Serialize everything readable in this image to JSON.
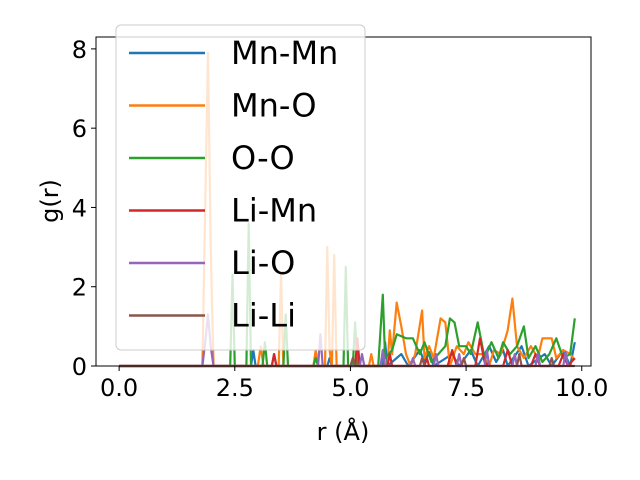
{
  "chart_data": {
    "type": "line",
    "xlabel": "r (Å)",
    "ylabel": "g(r)",
    "xlim": [
      -0.5,
      10.2
    ],
    "ylim": [
      0,
      8.3
    ],
    "xticks": [
      0.0,
      2.5,
      5.0,
      7.5,
      10.0
    ],
    "xtick_labels": [
      "0.0",
      "2.5",
      "5.0",
      "7.5",
      "10.0"
    ],
    "yticks": [
      0,
      2,
      4,
      6,
      8
    ],
    "ytick_labels": [
      "0",
      "2",
      "4",
      "6",
      "8"
    ],
    "legend_position": "upper-left",
    "grid": false,
    "series": [
      {
        "name": "Mn-Mn",
        "color": "#1f77b4",
        "points": [
          [
            0,
            0
          ],
          [
            1.8,
            0
          ],
          [
            2.85,
            0
          ],
          [
            2.9,
            0.4
          ],
          [
            2.95,
            0
          ],
          [
            3.3,
            0
          ],
          [
            3.35,
            0.3
          ],
          [
            3.4,
            0
          ],
          [
            4.5,
            0
          ],
          [
            4.55,
            0.2
          ],
          [
            4.6,
            0
          ],
          [
            5.1,
            0
          ],
          [
            5.15,
            0.3
          ],
          [
            5.2,
            0
          ],
          [
            5.7,
            0
          ],
          [
            5.75,
            0.6
          ],
          [
            5.8,
            0
          ],
          [
            6.1,
            0.3
          ],
          [
            6.25,
            0
          ],
          [
            6.5,
            0.4
          ],
          [
            6.6,
            0.1
          ],
          [
            6.7,
            0.35
          ],
          [
            6.8,
            0
          ],
          [
            7.2,
            0.3
          ],
          [
            7.35,
            0
          ],
          [
            7.6,
            0.4
          ],
          [
            7.75,
            0
          ],
          [
            8.0,
            0.5
          ],
          [
            8.15,
            0.1
          ],
          [
            8.3,
            0.4
          ],
          [
            8.4,
            0
          ],
          [
            8.7,
            0.5
          ],
          [
            8.85,
            0
          ],
          [
            9.2,
            0.3
          ],
          [
            9.35,
            0
          ],
          [
            9.6,
            0.4
          ],
          [
            9.75,
            0
          ],
          [
            9.85,
            0.6
          ]
        ]
      },
      {
        "name": "Mn-O",
        "color": "#ff7f0e",
        "points": [
          [
            0,
            0
          ],
          [
            1.8,
            0
          ],
          [
            1.86,
            4.0
          ],
          [
            1.92,
            7.9
          ],
          [
            1.98,
            3.0
          ],
          [
            2.04,
            0
          ],
          [
            3.0,
            0
          ],
          [
            3.06,
            0.5
          ],
          [
            3.12,
            0
          ],
          [
            3.45,
            0
          ],
          [
            3.5,
            2.3
          ],
          [
            3.55,
            0
          ],
          [
            4.2,
            0
          ],
          [
            4.25,
            0.4
          ],
          [
            4.3,
            0
          ],
          [
            4.45,
            0
          ],
          [
            4.5,
            3.0
          ],
          [
            4.55,
            0.4
          ],
          [
            4.6,
            0
          ],
          [
            4.65,
            2.8
          ],
          [
            4.7,
            0
          ],
          [
            5.4,
            0
          ],
          [
            5.45,
            0.3
          ],
          [
            5.5,
            0
          ],
          [
            5.8,
            0
          ],
          [
            5.85,
            0.9
          ],
          [
            5.9,
            0.3
          ],
          [
            6.0,
            1.6
          ],
          [
            6.1,
            1.0
          ],
          [
            6.2,
            0.3
          ],
          [
            6.3,
            0
          ],
          [
            6.4,
            0.3
          ],
          [
            6.55,
            1.4
          ],
          [
            6.6,
            0.2
          ],
          [
            6.7,
            0.5
          ],
          [
            6.8,
            0.2
          ],
          [
            6.95,
            1.2
          ],
          [
            7.05,
            1.1
          ],
          [
            7.15,
            0
          ],
          [
            7.3,
            0.5
          ],
          [
            7.45,
            0.3
          ],
          [
            7.55,
            0.6
          ],
          [
            7.7,
            0.3
          ],
          [
            7.85,
            0.3
          ],
          [
            8.0,
            0
          ],
          [
            8.1,
            0.4
          ],
          [
            8.25,
            0.3
          ],
          [
            8.4,
            0.9
          ],
          [
            8.5,
            1.7
          ],
          [
            8.6,
            0.5
          ],
          [
            8.75,
            0.2
          ],
          [
            8.9,
            0.5
          ],
          [
            9.05,
            0.2
          ],
          [
            9.15,
            0.7
          ],
          [
            9.35,
            0.7
          ],
          [
            9.45,
            0.2
          ],
          [
            9.6,
            0.4
          ],
          [
            9.75,
            0.3
          ],
          [
            9.85,
            0.15
          ]
        ]
      },
      {
        "name": "O-O",
        "color": "#2ca02c",
        "points": [
          [
            0,
            0
          ],
          [
            2.4,
            0
          ],
          [
            2.45,
            2.3
          ],
          [
            2.5,
            0
          ],
          [
            2.75,
            0
          ],
          [
            2.8,
            3.6
          ],
          [
            2.85,
            0
          ],
          [
            3.1,
            0
          ],
          [
            3.15,
            0.6
          ],
          [
            3.2,
            0
          ],
          [
            3.55,
            0
          ],
          [
            3.6,
            1.3
          ],
          [
            3.65,
            0
          ],
          [
            4.2,
            0
          ],
          [
            4.25,
            0.2
          ],
          [
            4.3,
            0
          ],
          [
            4.85,
            0
          ],
          [
            4.9,
            2.5
          ],
          [
            4.95,
            0
          ],
          [
            5.05,
            0
          ],
          [
            5.1,
            1.1
          ],
          [
            5.15,
            0
          ],
          [
            5.6,
            0
          ],
          [
            5.65,
            0.9
          ],
          [
            5.7,
            1.8
          ],
          [
            5.75,
            0.2
          ],
          [
            5.9,
            0.4
          ],
          [
            6.0,
            0.8
          ],
          [
            6.2,
            0.7
          ],
          [
            6.35,
            0.7
          ],
          [
            6.5,
            0.3
          ],
          [
            6.6,
            0.6
          ],
          [
            6.75,
            0.1
          ],
          [
            6.9,
            0.3
          ],
          [
            7.05,
            0.5
          ],
          [
            7.15,
            1.2
          ],
          [
            7.25,
            1.1
          ],
          [
            7.35,
            0.5
          ],
          [
            7.5,
            0.5
          ],
          [
            7.6,
            0.3
          ],
          [
            7.75,
            1.1
          ],
          [
            7.9,
            0.2
          ],
          [
            8.05,
            0.6
          ],
          [
            8.2,
            0.2
          ],
          [
            8.3,
            0.6
          ],
          [
            8.45,
            0.3
          ],
          [
            8.6,
            0.5
          ],
          [
            8.75,
            1.0
          ],
          [
            8.85,
            0.2
          ],
          [
            9.0,
            0.5
          ],
          [
            9.15,
            0.1
          ],
          [
            9.3,
            0.3
          ],
          [
            9.45,
            0.7
          ],
          [
            9.6,
            0.2
          ],
          [
            9.75,
            0.3
          ],
          [
            9.85,
            1.2
          ]
        ]
      },
      {
        "name": "Li-Mn",
        "color": "#d62728",
        "points": [
          [
            0,
            0
          ],
          [
            3.3,
            0
          ],
          [
            3.35,
            0.3
          ],
          [
            3.4,
            0
          ],
          [
            5.1,
            0
          ],
          [
            5.15,
            0.7
          ],
          [
            5.2,
            0
          ],
          [
            5.8,
            0
          ],
          [
            5.85,
            0.3
          ],
          [
            5.9,
            0
          ],
          [
            6.6,
            0
          ],
          [
            6.65,
            0.2
          ],
          [
            6.7,
            0
          ],
          [
            7.1,
            0
          ],
          [
            7.2,
            0.4
          ],
          [
            7.3,
            0
          ],
          [
            7.7,
            0
          ],
          [
            7.8,
            0.7
          ],
          [
            7.9,
            0.1
          ],
          [
            8.0,
            0
          ],
          [
            8.3,
            0
          ],
          [
            8.4,
            0.4
          ],
          [
            8.5,
            0
          ],
          [
            8.9,
            0
          ],
          [
            9.0,
            0.3
          ],
          [
            9.1,
            0
          ],
          [
            9.5,
            0
          ],
          [
            9.6,
            0.3
          ],
          [
            9.7,
            0
          ],
          [
            9.85,
            0.2
          ]
        ]
      },
      {
        "name": "Li-O",
        "color": "#9467bd",
        "points": [
          [
            0,
            0
          ],
          [
            1.8,
            0
          ],
          [
            1.86,
            0.6
          ],
          [
            1.92,
            1.3
          ],
          [
            1.98,
            0.5
          ],
          [
            2.04,
            0
          ],
          [
            4.3,
            0
          ],
          [
            4.35,
            0.8
          ],
          [
            4.4,
            0
          ],
          [
            5.2,
            0
          ],
          [
            5.25,
            0.3
          ],
          [
            5.3,
            0
          ],
          [
            5.65,
            0
          ],
          [
            5.7,
            0.4
          ],
          [
            5.75,
            0
          ],
          [
            6.3,
            0
          ],
          [
            6.35,
            0.2
          ],
          [
            6.4,
            0
          ],
          [
            6.8,
            0
          ],
          [
            6.85,
            0.3
          ],
          [
            6.9,
            0
          ],
          [
            7.3,
            0
          ],
          [
            7.35,
            0.3
          ],
          [
            7.4,
            0
          ],
          [
            7.9,
            0
          ],
          [
            7.95,
            0.4
          ],
          [
            8.0,
            0
          ],
          [
            8.5,
            0
          ],
          [
            8.55,
            0.3
          ],
          [
            8.6,
            0
          ],
          [
            9.0,
            0
          ],
          [
            9.05,
            0.3
          ],
          [
            9.1,
            0
          ],
          [
            9.6,
            0
          ],
          [
            9.65,
            0.35
          ],
          [
            9.7,
            0
          ]
        ]
      },
      {
        "name": "Li-Li",
        "color": "#8c564b",
        "points": [
          [
            0,
            0
          ],
          [
            5.0,
            0
          ],
          [
            5.05,
            0.2
          ],
          [
            5.1,
            0
          ],
          [
            6.5,
            0
          ],
          [
            6.55,
            0.2
          ],
          [
            6.6,
            0
          ],
          [
            7.4,
            0
          ],
          [
            7.45,
            0.2
          ],
          [
            7.5,
            0
          ],
          [
            8.6,
            0
          ],
          [
            8.65,
            0.3
          ],
          [
            8.7,
            0
          ],
          [
            9.3,
            0
          ],
          [
            9.35,
            0.2
          ],
          [
            9.4,
            0
          ],
          [
            9.85,
            0
          ]
        ]
      }
    ]
  }
}
